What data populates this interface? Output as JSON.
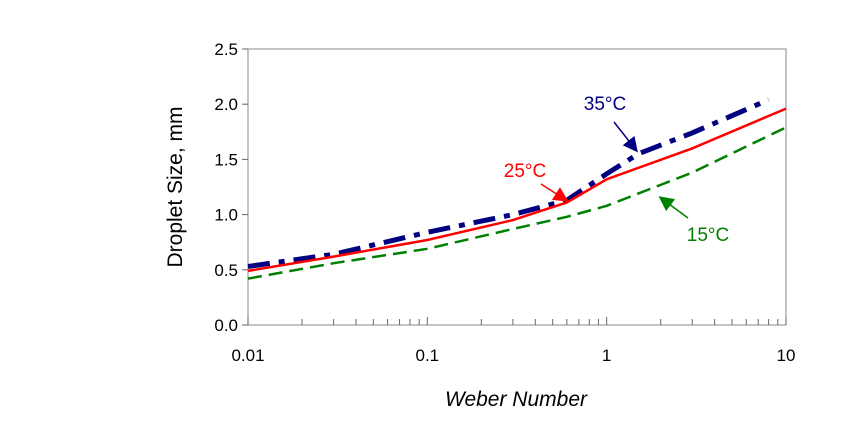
{
  "chart_data": {
    "type": "line",
    "title": "",
    "xlabel": "Weber Number",
    "ylabel": "Droplet Size, mm",
    "x_scale": "log",
    "xlim": [
      0.01,
      10
    ],
    "ylim": [
      0,
      2.5
    ],
    "x_ticks": [
      "0.01",
      "0.1",
      "1",
      "10"
    ],
    "y_ticks": [
      "0.0",
      "0.5",
      "1.0",
      "1.5",
      "2.0",
      "2.5"
    ],
    "grid": false,
    "legend": "none (series labelled by arrows on the plot)",
    "series": [
      {
        "name": "35°C",
        "color": "#000080",
        "style": "dash-dot",
        "x": [
          0.01,
          0.03,
          0.1,
          0.3,
          0.6,
          1,
          1.5,
          3,
          8
        ],
        "y": [
          0.53,
          0.64,
          0.84,
          1.0,
          1.13,
          1.37,
          1.55,
          1.74,
          2.04
        ]
      },
      {
        "name": "25°C",
        "color": "#ff0000",
        "style": "solid",
        "x": [
          0.01,
          0.03,
          0.1,
          0.3,
          0.6,
          1,
          3,
          10
        ],
        "y": [
          0.49,
          0.62,
          0.77,
          0.95,
          1.11,
          1.32,
          1.6,
          1.96
        ]
      },
      {
        "name": "15°C",
        "color": "#008000",
        "style": "dashed",
        "x": [
          0.01,
          0.03,
          0.1,
          0.3,
          0.6,
          1,
          3,
          10
        ],
        "y": [
          0.42,
          0.56,
          0.69,
          0.87,
          0.98,
          1.08,
          1.38,
          1.79
        ]
      }
    ],
    "annotations": [
      {
        "text": "35°C",
        "color": "#000080",
        "points_to_x": 1.5
      },
      {
        "text": "25°C",
        "color": "#ff0000",
        "points_to_x": 0.7
      },
      {
        "text": "15°C",
        "color": "#008000",
        "points_to_x": 1.9
      }
    ]
  }
}
